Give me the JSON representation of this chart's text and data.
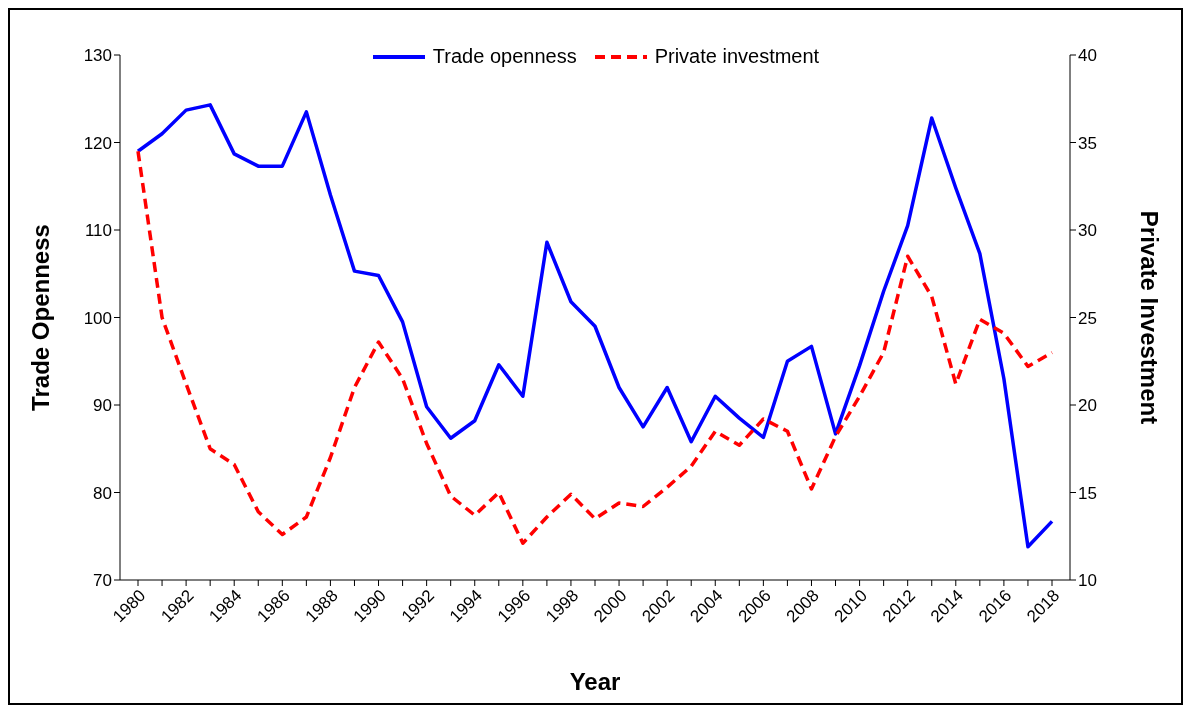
{
  "chart_data": {
    "type": "line",
    "categories": [
      "1980",
      null,
      "1982",
      null,
      "1984",
      null,
      "1986",
      null,
      "1988",
      null,
      "1990",
      null,
      "1992",
      null,
      "1994",
      null,
      "1996",
      null,
      "1998",
      null,
      "2000",
      null,
      "2002",
      null,
      "2004",
      null,
      "2006",
      null,
      "2008",
      null,
      "2010",
      null,
      "2012",
      null,
      "2014",
      null,
      "2016",
      null,
      "2018"
    ],
    "series": [
      {
        "name": "Trade openness",
        "color": "#0000ff",
        "line_style": "solid",
        "values": [
          119.0,
          121.0,
          123.7,
          124.3,
          118.7,
          117.3,
          117.3,
          123.5,
          114.0,
          105.3,
          104.8,
          99.5,
          89.8,
          86.2,
          88.2,
          94.6,
          91.0,
          108.6,
          101.8,
          99.0,
          92.0,
          87.5,
          92.0,
          85.8,
          91.0,
          88.5,
          86.3,
          95.0,
          96.7,
          86.7,
          94.5,
          103.0,
          110.5,
          122.8,
          114.8,
          107.3,
          93.0,
          73.8,
          76.7
        ]
      },
      {
        "name": "Private investment",
        "color": "#ff0000",
        "line_style": "dashed",
        "axis": "y2",
        "values": [
          34.5,
          25.0,
          21.2,
          17.5,
          16.6,
          13.9,
          12.6,
          13.6,
          17.0,
          21.0,
          23.6,
          21.5,
          17.8,
          14.8,
          13.7,
          15.0,
          12.1,
          13.6,
          14.9,
          13.5,
          14.4,
          14.2,
          15.3,
          16.5,
          18.5,
          17.7,
          19.2,
          18.5,
          15.2,
          18.2,
          20.5,
          23.0,
          28.5,
          26.2,
          21.2,
          24.9,
          24.1,
          22.2,
          23.0
        ]
      }
    ],
    "xlabel": "Year",
    "ylabel": "Trade Openness",
    "y2label": "Private Investment",
    "ylim": [
      70,
      130
    ],
    "yticks": [
      70,
      80,
      90,
      100,
      110,
      120,
      130
    ],
    "y2lim": [
      10,
      40
    ],
    "y2ticks": [
      10,
      15,
      20,
      25,
      30,
      35,
      40
    ],
    "grid": false,
    "legend": "top",
    "marker": "none"
  }
}
